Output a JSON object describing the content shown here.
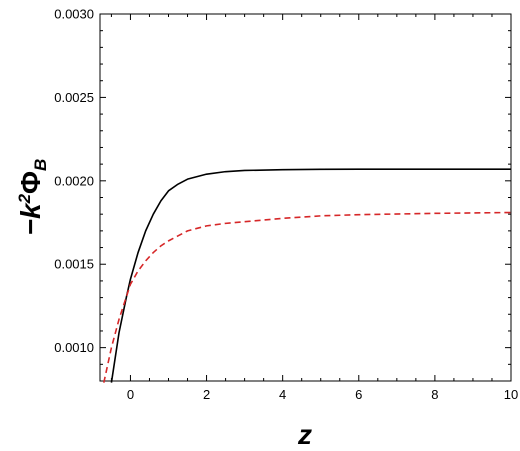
{
  "chart_data": {
    "type": "line",
    "title": "",
    "xlabel": "z",
    "ylabel": "−k²Φ_B",
    "xlim": [
      -0.8,
      10
    ],
    "ylim": [
      0.0008,
      0.003
    ],
    "x_ticks": [
      0,
      2,
      4,
      6,
      8,
      10
    ],
    "x_tick_labels": [
      "0",
      "2",
      "4",
      "6",
      "8",
      "10"
    ],
    "y_ticks": [
      0.001,
      0.0015,
      0.002,
      0.0025,
      0.003
    ],
    "y_tick_labels": [
      "0.0010",
      "0.0015",
      "0.0020",
      "0.0025",
      "0.0030"
    ],
    "grid": false,
    "legend": "none",
    "series": [
      {
        "color": "#000000",
        "style": "solid",
        "x": [
          -0.5,
          -0.3,
          -0.1,
          0.0,
          0.2,
          0.4,
          0.6,
          0.8,
          1.0,
          1.25,
          1.5,
          2.0,
          2.5,
          3.0,
          4.0,
          5.0,
          6.0,
          8.0,
          10.0
        ],
        "y": [
          0.00079,
          0.00109,
          0.00131,
          0.00141,
          0.00157,
          0.0017,
          0.0018,
          0.00188,
          0.00194,
          0.00198,
          0.00201,
          0.00204,
          0.002055,
          0.002062,
          0.002067,
          0.002069,
          0.00207,
          0.00207,
          0.00207
        ]
      },
      {
        "color": "#d62728",
        "style": "dashed",
        "x": [
          -0.7,
          -0.5,
          -0.3,
          -0.1,
          0.0,
          0.2,
          0.4,
          0.6,
          0.8,
          1.0,
          1.5,
          2.0,
          2.5,
          3.0,
          4.0,
          5.0,
          6.0,
          8.0,
          10.0
        ],
        "y": [
          0.00079,
          0.001,
          0.00117,
          0.00131,
          0.00138,
          0.00146,
          0.00152,
          0.00157,
          0.00161,
          0.00164,
          0.0017,
          0.00173,
          0.001745,
          0.001755,
          0.001775,
          0.00179,
          0.001797,
          0.001805,
          0.00181
        ]
      }
    ]
  }
}
